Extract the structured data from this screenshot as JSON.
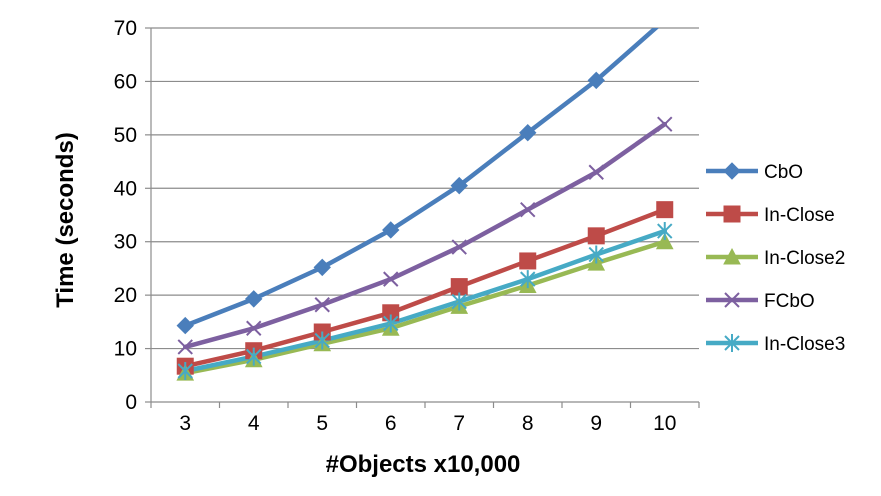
{
  "chart_data": {
    "type": "line",
    "xlabel": "#Objects x10,000",
    "ylabel": "Time (seconds)",
    "x": [
      3,
      4,
      5,
      6,
      7,
      8,
      9,
      10
    ],
    "xticks": [
      "3",
      "4",
      "5",
      "6",
      "7",
      "8",
      "9",
      "10"
    ],
    "ylim": [
      0,
      70
    ],
    "yticks": [
      0,
      10,
      20,
      30,
      40,
      50,
      60,
      70
    ],
    "grid": "horizontal",
    "legend": "right",
    "series": [
      {
        "name": "CbO",
        "color": "#4a7ebb",
        "marker": "diamond",
        "values": [
          14.3,
          19.3,
          25.2,
          32.2,
          40.5,
          50.4,
          60.2,
          71.5
        ]
      },
      {
        "name": "In-Close",
        "color": "#be4b48",
        "marker": "square",
        "values": [
          6.7,
          9.6,
          13.1,
          16.7,
          21.6,
          26.4,
          31.1,
          36.0
        ]
      },
      {
        "name": "In-Close2",
        "color": "#98b954",
        "marker": "triangle",
        "values": [
          5.4,
          7.9,
          10.9,
          13.8,
          17.9,
          21.8,
          26.0,
          30.0
        ]
      },
      {
        "name": "FCbO",
        "color": "#7d60a0",
        "marker": "x",
        "values": [
          10.3,
          13.8,
          18.2,
          23.0,
          29.0,
          36.0,
          43.0,
          52.0
        ]
      },
      {
        "name": "In-Close3",
        "color": "#46aac5",
        "marker": "star",
        "values": [
          5.8,
          8.5,
          11.5,
          14.7,
          18.8,
          23.0,
          27.6,
          32.0
        ]
      }
    ]
  }
}
